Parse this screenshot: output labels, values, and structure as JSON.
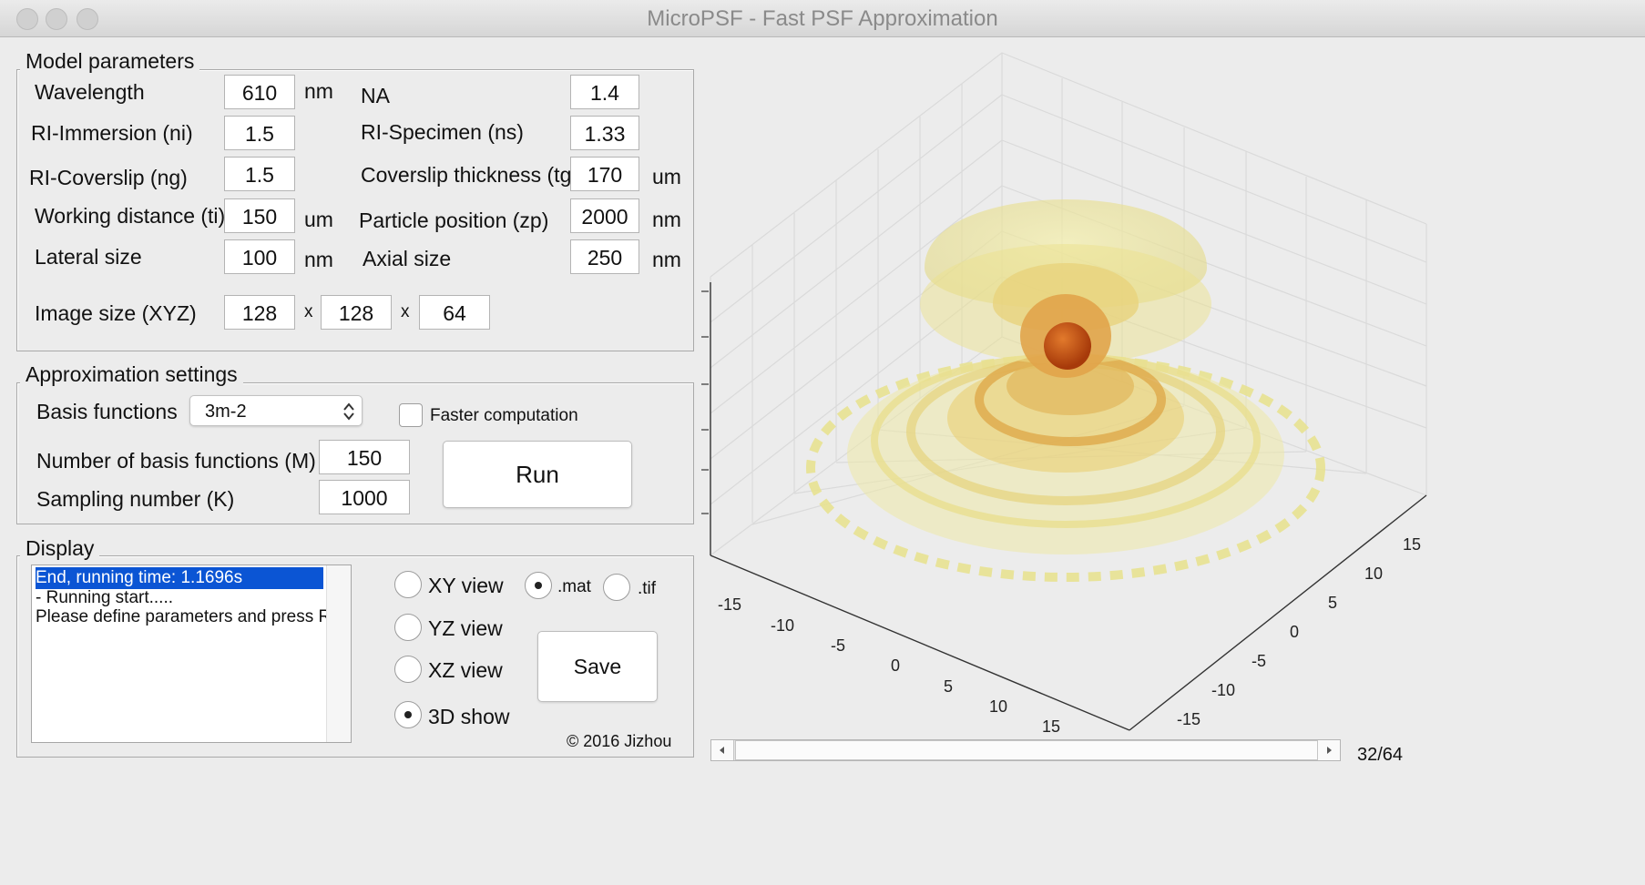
{
  "window": {
    "title": "MicroPSF - Fast PSF Approximation"
  },
  "model": {
    "legend": "Model parameters",
    "wavelength_label": "Wavelength",
    "wavelength_value": "610",
    "wavelength_unit": "nm",
    "na_label": "NA",
    "na_value": "1.4",
    "ri_imm_label": "RI-Immersion (ni)",
    "ri_imm_value": "1.5",
    "ri_spec_label": "RI-Specimen (ns)",
    "ri_spec_value": "1.33",
    "ri_cov_label": "RI-Coverslip (ng)",
    "ri_cov_value": "1.5",
    "cov_th_label": "Coverslip thickness (tg)",
    "cov_th_value": "170",
    "cov_th_unit": "um",
    "work_dist_label": "Working distance (ti)",
    "work_dist_value": "150",
    "work_dist_unit": "um",
    "part_pos_label": "Particle position (zp)",
    "part_pos_value": "2000",
    "part_pos_unit": "nm",
    "lat_label": "Lateral size",
    "lat_value": "100",
    "lat_unit": "nm",
    "ax_label": "Axial size",
    "ax_value": "250",
    "ax_unit": "nm",
    "img_label": "Image size (XYZ)",
    "img_x": "128",
    "img_y": "128",
    "img_z": "64",
    "sep": "x"
  },
  "approx": {
    "legend": "Approximation settings",
    "basis_label": "Basis functions",
    "basis_value": "3m-2",
    "faster_label": "Faster computation",
    "num_label": "Number of basis functions (M)",
    "num_value": "150",
    "samp_label": "Sampling number (K)",
    "samp_value": "1000",
    "run_label": "Run"
  },
  "display": {
    "legend": "Display",
    "log": [
      "End, running time: 1.1696s",
      "- Running start.....",
      "Please define parameters and press Run"
    ],
    "xy": "XY view",
    "yz": "YZ view",
    "xz": "XZ view",
    "show3d": "3D show",
    "mat": ".mat",
    "tif": ".tif",
    "save_label": "Save",
    "copyright": "© 2016 Jizhou"
  },
  "plot": {
    "x_ticks": [
      "-15",
      "-10",
      "-5",
      "0",
      "5",
      "10",
      "15"
    ],
    "y_ticks": [
      "15",
      "10",
      "5",
      "0",
      "-5",
      "-10",
      "-15"
    ],
    "slice_label": "32/64",
    "slice_fraction": 0.5,
    "colors": {
      "outer": "#ecec9a",
      "mid": "#e8c25a",
      "inner": "#d98a2a",
      "core": "#c84a10"
    }
  }
}
